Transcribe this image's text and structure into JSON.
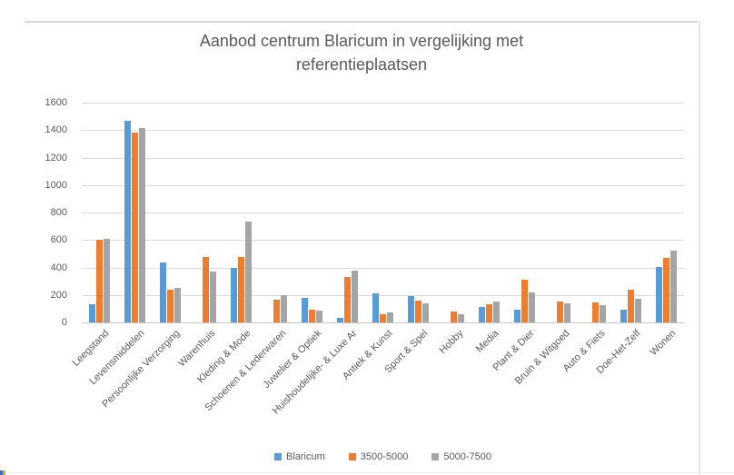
{
  "chart_data": {
    "type": "bar",
    "title": "Aanbod centrum Blaricum in vergelijking met referentieplaatsen",
    "title_lines": [
      "Aanbod centrum Blaricum in vergelijking met",
      "referentieplaatsen"
    ],
    "categories": [
      "Leegstand",
      "Levensmiddelen",
      "Persoonlijke Verzorging",
      "Warenhuis",
      "Kleding & Mode",
      "Schoenen & Lederwaren",
      "Juwelier & Optiek",
      "Huishoudelijke- & Luxe Ar",
      "Antiek & Kunst",
      "Sport & Spel",
      "Hobby",
      "Media",
      "Plant & Dier",
      "Bruin & Witgoed",
      "Auto & Fiets",
      "Doe-Het-Zelf",
      "Wonen"
    ],
    "series": [
      {
        "name": "Blaricum",
        "color": "#5B9BD5",
        "values": [
          135,
          1470,
          435,
          0,
          395,
          0,
          180,
          30,
          210,
          190,
          0,
          115,
          90,
          0,
          0,
          95,
          405
        ]
      },
      {
        "name": "3500-5000",
        "color": "#ED7D31",
        "values": [
          600,
          1385,
          240,
          475,
          475,
          165,
          90,
          330,
          60,
          160,
          80,
          135,
          310,
          150,
          145,
          240,
          470
        ]
      },
      {
        "name": "5000-7500",
        "color": "#A5A5A5",
        "values": [
          610,
          1415,
          250,
          370,
          735,
          200,
          85,
          380,
          75,
          140,
          60,
          150,
          220,
          140,
          125,
          175,
          520
        ]
      }
    ],
    "xlabel": "",
    "ylabel": "",
    "ylim": [
      0,
      1600
    ],
    "yticks": [
      0,
      200,
      400,
      600,
      800,
      1000,
      1200,
      1400,
      1600
    ],
    "grid": "horizontal",
    "legend_position": "bottom",
    "colors": {
      "gridline": "#D9D9D9",
      "axis_text": "#595959",
      "title_text": "#595959"
    }
  }
}
